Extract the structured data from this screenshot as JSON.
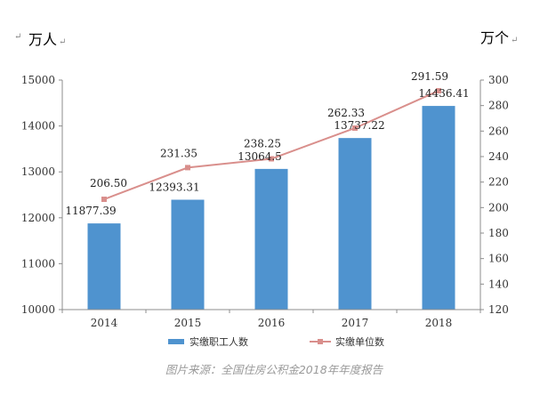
{
  "chart_data": {
    "type": "bar",
    "categories": [
      "2014",
      "2015",
      "2016",
      "2017",
      "2018"
    ],
    "series": [
      {
        "name": "实缴职工人数",
        "type": "bar",
        "axis": "left",
        "values": [
          11877.39,
          12393.31,
          13064.5,
          13737.22,
          14436.41
        ],
        "labels": [
          "11877.39",
          "12393.31",
          "13064.5",
          "13737.22",
          "14436.41"
        ],
        "color": "#4f93cf"
      },
      {
        "name": "实缴单位数",
        "type": "line",
        "axis": "right",
        "values": [
          206.5,
          231.35,
          238.25,
          262.33,
          291.59
        ],
        "labels": [
          "206.50",
          "231.35",
          "238.25",
          "262.33",
          "291.59"
        ],
        "color": "#d98f8c"
      }
    ],
    "left_axis": {
      "unit": "万人",
      "ylim": [
        10000,
        15000
      ],
      "ticks": [
        "10000",
        "11000",
        "12000",
        "13000",
        "14000",
        "15000"
      ]
    },
    "right_axis": {
      "unit": "万个",
      "ylim": [
        120,
        300
      ],
      "ticks": [
        "120",
        "140",
        "160",
        "180",
        "200",
        "220",
        "240",
        "260",
        "280",
        "300"
      ]
    },
    "grid": false,
    "legend": "bottom",
    "paragraph_mark": "↵",
    "source": "图片来源：全国住房公积金2018年年度报告"
  }
}
